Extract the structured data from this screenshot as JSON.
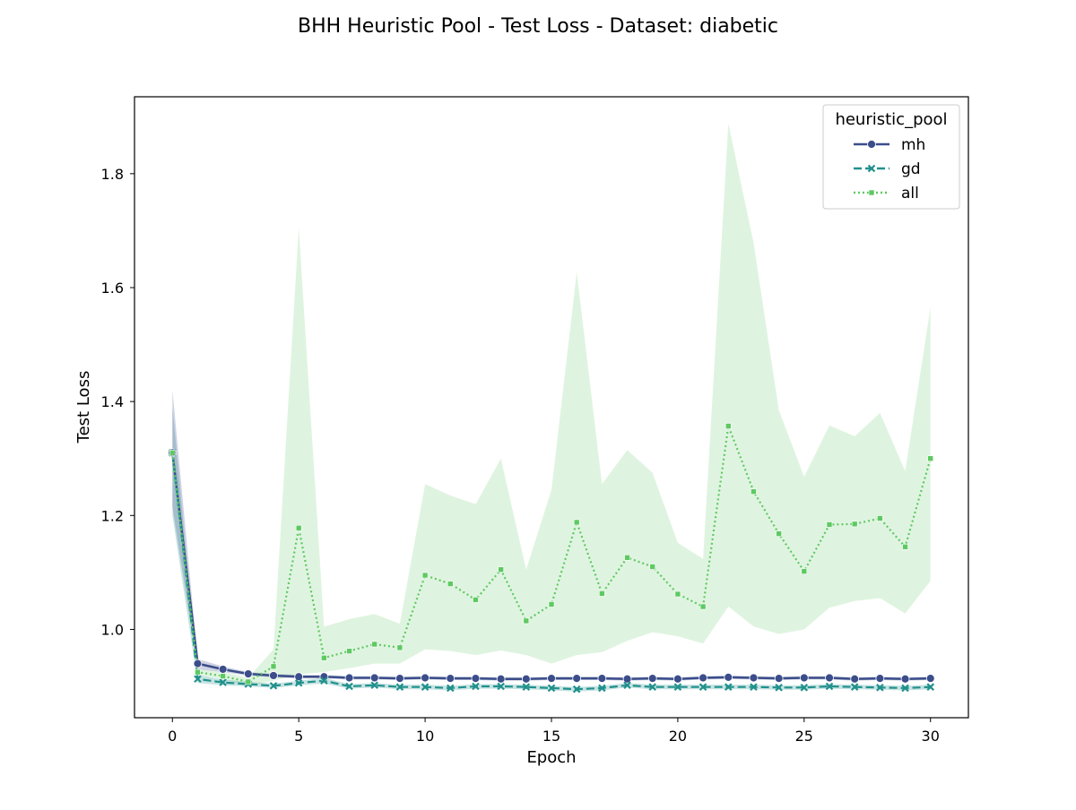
{
  "chart_data": {
    "type": "line",
    "title": "BHH Heuristic Pool - Test Loss - Dataset: diabetic",
    "xlabel": "Epoch",
    "ylabel": "Test Loss",
    "xlim": [
      -1.5,
      31.5
    ],
    "ylim": [
      0.845,
      1.935
    ],
    "xticks": [
      0,
      5,
      10,
      15,
      20,
      25,
      30
    ],
    "yticks": [
      1.0,
      1.2,
      1.4,
      1.6,
      1.8
    ],
    "ytick_labels": [
      "1.0",
      "1.2",
      "1.4",
      "1.6",
      "1.8"
    ],
    "legend": {
      "title": "heuristic_pool",
      "position": "top-right"
    },
    "x": [
      0,
      1,
      2,
      3,
      4,
      5,
      6,
      7,
      8,
      9,
      10,
      11,
      12,
      13,
      14,
      15,
      16,
      17,
      18,
      19,
      20,
      21,
      22,
      23,
      24,
      25,
      26,
      27,
      28,
      29,
      30
    ],
    "series": [
      {
        "name": "mh",
        "color": "#3b4d8a",
        "dash": "solid",
        "marker": "circle",
        "values": [
          1.31,
          0.94,
          0.93,
          0.922,
          0.919,
          0.917,
          0.917,
          0.915,
          0.915,
          0.914,
          0.915,
          0.914,
          0.914,
          0.913,
          0.913,
          0.914,
          0.914,
          0.914,
          0.913,
          0.914,
          0.913,
          0.915,
          0.916,
          0.915,
          0.914,
          0.915,
          0.915,
          0.913,
          0.914,
          0.913,
          0.914
        ],
        "band_upper": [
          1.42,
          0.948,
          0.935,
          0.925,
          0.922,
          0.92,
          0.92,
          0.918,
          0.918,
          0.917,
          0.918,
          0.917,
          0.917,
          0.916,
          0.916,
          0.917,
          0.917,
          0.917,
          0.916,
          0.917,
          0.916,
          0.918,
          0.919,
          0.918,
          0.917,
          0.918,
          0.918,
          0.916,
          0.917,
          0.916,
          0.917
        ],
        "band_lower": [
          1.215,
          0.93,
          0.925,
          0.919,
          0.916,
          0.914,
          0.914,
          0.912,
          0.912,
          0.911,
          0.912,
          0.911,
          0.911,
          0.91,
          0.91,
          0.911,
          0.911,
          0.911,
          0.91,
          0.911,
          0.91,
          0.912,
          0.913,
          0.912,
          0.911,
          0.912,
          0.912,
          0.91,
          0.911,
          0.91,
          0.911
        ]
      },
      {
        "name": "gd",
        "color": "#21918c",
        "dash": "dashed",
        "marker": "x",
        "values": [
          1.31,
          0.913,
          0.907,
          0.904,
          0.901,
          0.906,
          0.91,
          0.9,
          0.902,
          0.899,
          0.899,
          0.897,
          0.9,
          0.9,
          0.899,
          0.897,
          0.895,
          0.897,
          0.902,
          0.899,
          0.899,
          0.899,
          0.899,
          0.899,
          0.898,
          0.898,
          0.9,
          0.899,
          0.898,
          0.897,
          0.899
        ],
        "band_upper": [
          1.39,
          0.92,
          0.912,
          0.908,
          0.905,
          0.91,
          0.915,
          0.904,
          0.906,
          0.903,
          0.903,
          0.901,
          0.904,
          0.904,
          0.903,
          0.901,
          0.899,
          0.901,
          0.906,
          0.903,
          0.903,
          0.903,
          0.903,
          0.903,
          0.902,
          0.902,
          0.904,
          0.903,
          0.902,
          0.901,
          0.903
        ],
        "band_lower": [
          1.2,
          0.906,
          0.902,
          0.9,
          0.897,
          0.902,
          0.905,
          0.896,
          0.898,
          0.895,
          0.895,
          0.893,
          0.896,
          0.896,
          0.895,
          0.893,
          0.891,
          0.893,
          0.898,
          0.895,
          0.895,
          0.895,
          0.895,
          0.895,
          0.894,
          0.894,
          0.896,
          0.895,
          0.894,
          0.893,
          0.895
        ]
      },
      {
        "name": "all",
        "color": "#5ec962",
        "dash": "dotted",
        "marker": "square",
        "values": [
          1.31,
          0.925,
          0.918,
          0.908,
          0.935,
          1.178,
          0.95,
          0.962,
          0.974,
          0.968,
          1.095,
          1.08,
          1.052,
          1.105,
          1.015,
          1.044,
          1.188,
          1.063,
          1.126,
          1.11,
          1.062,
          1.04,
          1.357,
          1.242,
          1.168,
          1.102,
          1.184,
          1.185,
          1.195,
          1.145,
          1.3
        ],
        "band_upper": [
          1.32,
          0.93,
          0.925,
          0.915,
          0.965,
          1.705,
          1.005,
          1.018,
          1.027,
          1.01,
          1.255,
          1.235,
          1.22,
          1.3,
          1.105,
          1.245,
          1.627,
          1.255,
          1.315,
          1.275,
          1.152,
          1.124,
          1.888,
          1.678,
          1.385,
          1.268,
          1.358,
          1.339,
          1.38,
          1.278,
          1.565
        ],
        "band_lower": [
          1.3,
          0.92,
          0.913,
          0.9,
          0.91,
          0.921,
          0.925,
          0.932,
          0.94,
          0.94,
          0.965,
          0.962,
          0.955,
          0.963,
          0.955,
          0.94,
          0.955,
          0.96,
          0.98,
          0.995,
          0.988,
          0.975,
          1.04,
          1.005,
          0.992,
          1.0,
          1.038,
          1.05,
          1.055,
          1.028,
          1.085
        ]
      }
    ]
  }
}
